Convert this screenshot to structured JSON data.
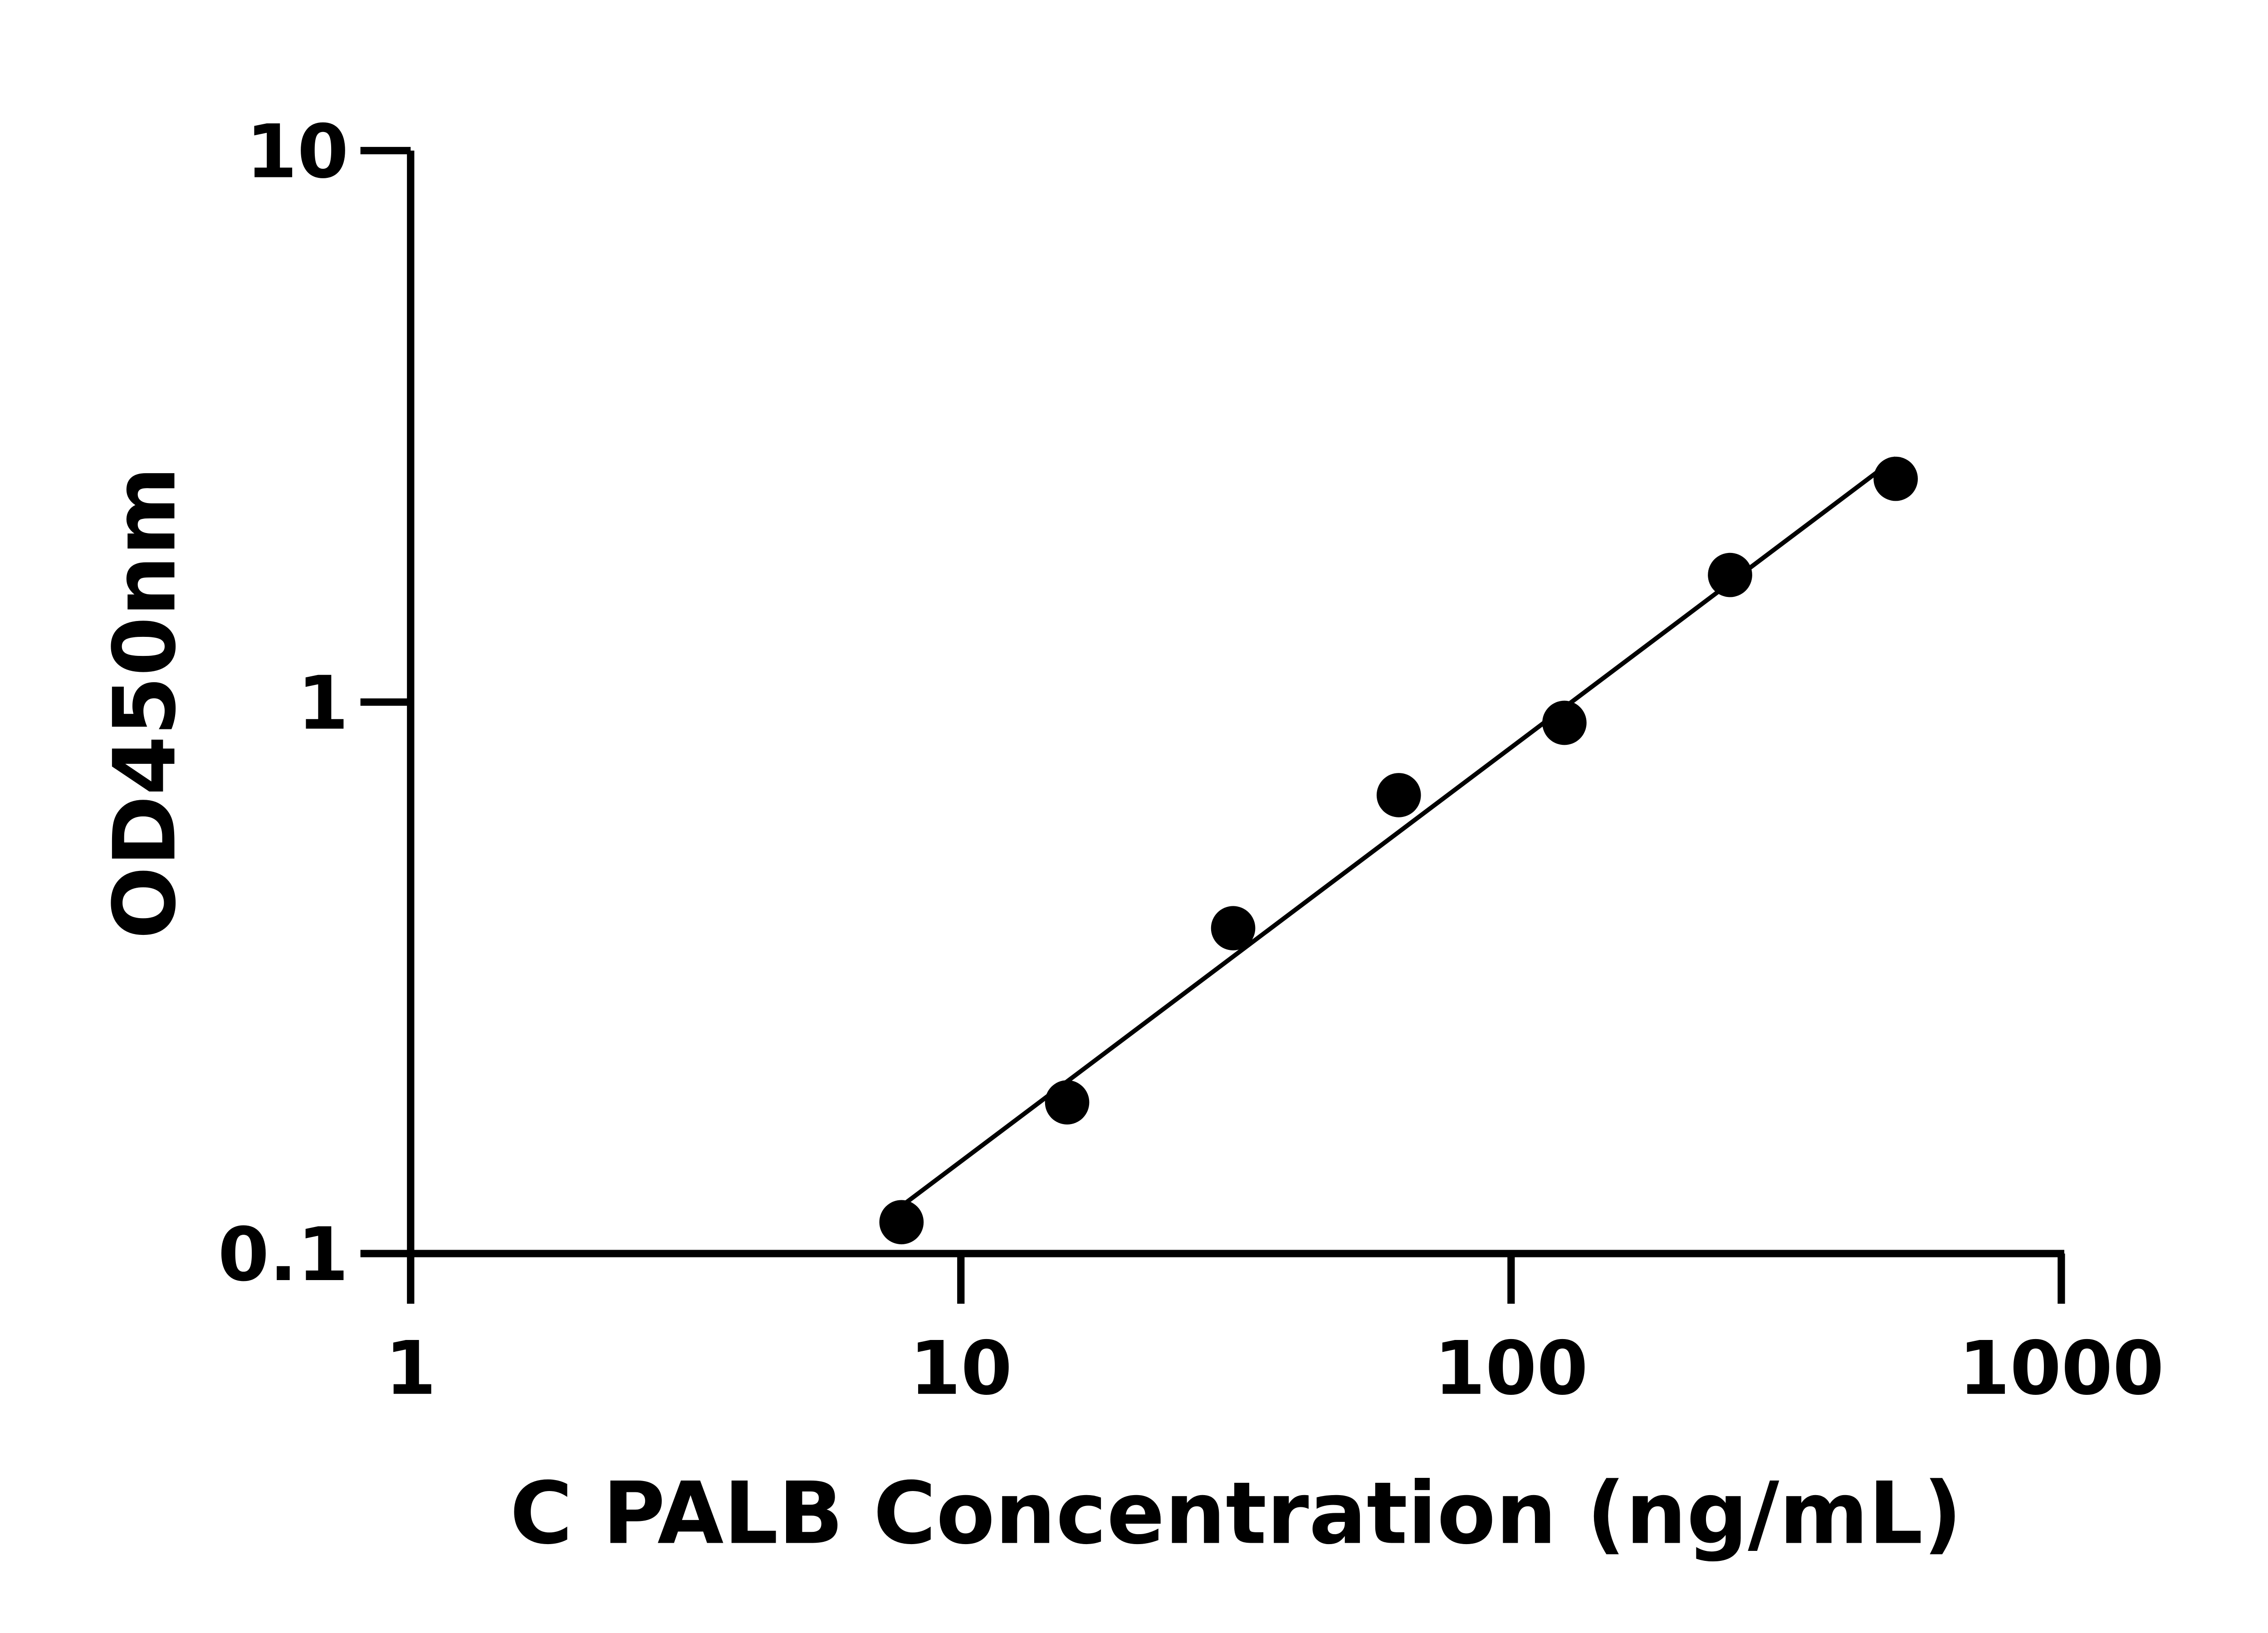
{
  "chart_data": {
    "type": "scatter",
    "title": "",
    "xlabel": "C PALB Concentration (ng/mL)",
    "ylabel": "OD450nm",
    "xscale": "log",
    "yscale": "log",
    "xlim": [
      1,
      1000
    ],
    "ylim": [
      0.1,
      10
    ],
    "xticks": [
      "1",
      "10",
      "100",
      "1000"
    ],
    "yticks": [
      "0.1",
      "1",
      "10"
    ],
    "grid": false,
    "legend": "none",
    "marker_color": "#000000",
    "fit_line": "log-log linear fit",
    "series": [
      {
        "x": [
          7.8,
          15.6,
          31.25,
          62.5,
          125,
          250,
          500
        ],
        "y": [
          0.114,
          0.188,
          0.389,
          0.678,
          0.917,
          1.7,
          2.54
        ]
      }
    ]
  }
}
